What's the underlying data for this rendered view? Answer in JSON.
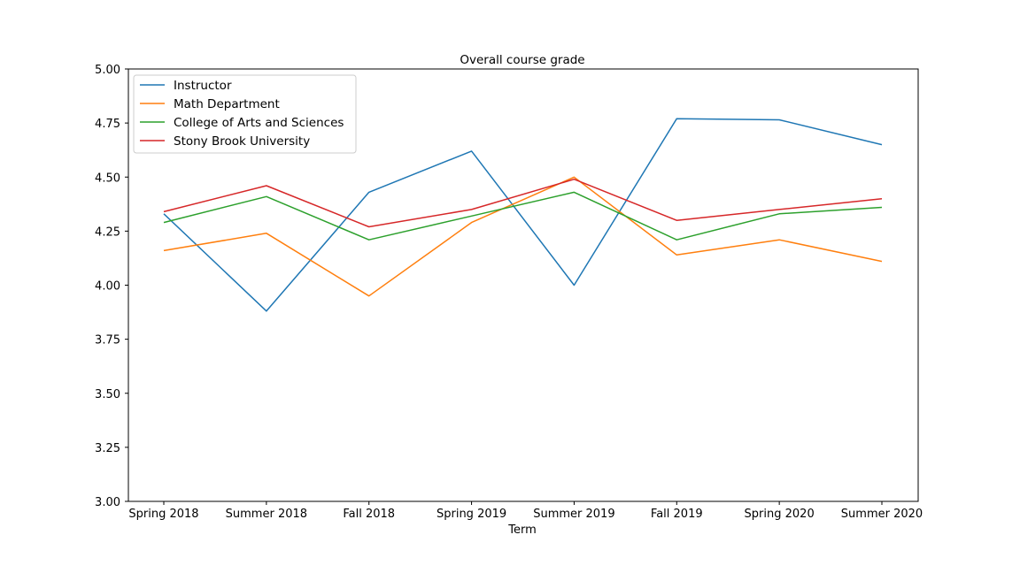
{
  "chart_data": {
    "type": "line",
    "title": "Overall course grade",
    "xlabel": "Term",
    "ylabel": "",
    "categories": [
      "Spring 2018",
      "Summer 2018",
      "Fall 2018",
      "Spring 2019",
      "Summer 2019",
      "Fall 2019",
      "Spring 2020",
      "Summer 2020"
    ],
    "ylim": [
      3.0,
      5.0
    ],
    "yticks": [
      "3.00",
      "3.25",
      "3.50",
      "3.75",
      "4.00",
      "4.25",
      "4.50",
      "4.75",
      "5.00"
    ],
    "grid": false,
    "legend_position": "top-left",
    "series": [
      {
        "name": "Instructor",
        "color": "#1f77b4",
        "values": [
          4.33,
          3.88,
          4.43,
          4.62,
          4.0,
          4.77,
          4.765,
          4.65
        ]
      },
      {
        "name": "Math Department",
        "color": "#ff7f0e",
        "values": [
          4.16,
          4.24,
          3.95,
          4.29,
          4.5,
          4.14,
          4.21,
          4.11
        ]
      },
      {
        "name": "College of Arts and Sciences",
        "color": "#2ca02c",
        "values": [
          4.29,
          4.41,
          4.21,
          4.32,
          4.43,
          4.21,
          4.33,
          4.36
        ]
      },
      {
        "name": "Stony Brook University",
        "color": "#d62728",
        "values": [
          4.34,
          4.46,
          4.27,
          4.35,
          4.49,
          4.3,
          4.35,
          4.4
        ]
      }
    ]
  }
}
